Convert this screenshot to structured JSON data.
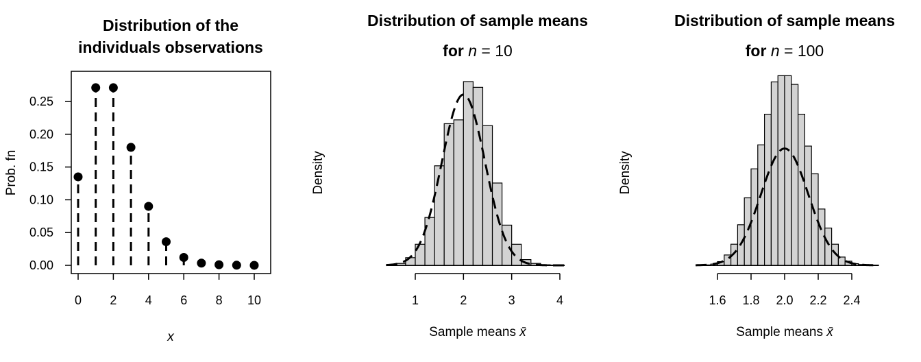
{
  "chart_data": [
    {
      "type": "bar",
      "title_lines": [
        "Distribution of the",
        "individuals observations"
      ],
      "xlabel": "x",
      "ylabel": "Prob. fn",
      "categories": [
        0,
        1,
        2,
        3,
        4,
        5,
        6,
        7,
        8,
        9,
        10
      ],
      "values": [
        0.135,
        0.271,
        0.271,
        0.18,
        0.09,
        0.036,
        0.012,
        0.0034,
        0.0009,
        0.0002,
        4e-05
      ],
      "xlim": [
        0,
        10
      ],
      "ylim": [
        0,
        0.29
      ],
      "xticks": [
        "0",
        "2",
        "4",
        "6",
        "8",
        "10"
      ],
      "yticks": [
        "0.00",
        "0.05",
        "0.10",
        "0.15",
        "0.20",
        "0.25"
      ],
      "style": "lollipop with dashed stems, boxed frame"
    },
    {
      "type": "bar",
      "title": "Distribution of sample means",
      "subtitle_parts": {
        "bold": "for",
        "italic": "n",
        "rest": " = 10"
      },
      "xlabel_text": "Sample means ",
      "xlabel_symbol": "x̄",
      "ylabel": "Density",
      "bin_edges": [
        0.4,
        0.6,
        0.8,
        1.0,
        1.2,
        1.4,
        1.6,
        1.8,
        2.0,
        2.2,
        2.4,
        2.6,
        2.8,
        3.0,
        3.2,
        3.4,
        3.6,
        3.8,
        4.0
      ],
      "values": [
        0.003,
        0.01,
        0.04,
        0.11,
        0.25,
        0.52,
        0.74,
        0.76,
        0.96,
        0.93,
        0.73,
        0.43,
        0.21,
        0.11,
        0.03,
        0.01,
        0.003,
        0.001
      ],
      "curve": {
        "type": "normal density",
        "mean": 2.0,
        "sd": 0.447,
        "style": "dashed"
      },
      "xticks": [
        "1",
        "2",
        "3",
        "4"
      ],
      "xlim": [
        0.4,
        4.1
      ],
      "ylim": [
        0,
        0.96
      ],
      "color_fill": "#d3d3d3"
    },
    {
      "type": "bar",
      "title": "Distribution of sample means",
      "subtitle_parts": {
        "bold": "for",
        "italic": "n",
        "rest": " = 100"
      },
      "xlabel_text": "Sample means ",
      "xlabel_symbol": "x̄",
      "ylabel": "Density",
      "bin_edges": [
        1.48,
        1.52,
        1.56,
        1.6,
        1.64,
        1.68,
        1.72,
        1.76,
        1.8,
        1.84,
        1.88,
        1.92,
        1.96,
        2.0,
        2.04,
        2.08,
        2.12,
        2.16,
        2.2,
        2.24,
        2.28,
        2.32,
        2.36,
        2.4,
        2.44,
        2.48,
        2.52,
        2.56
      ],
      "values": [
        0.005,
        0.01,
        0.03,
        0.09,
        0.25,
        0.51,
        0.98,
        1.63,
        2.33,
        2.91,
        3.65,
        4.43,
        4.58,
        4.58,
        4.37,
        3.65,
        2.88,
        2.21,
        1.36,
        0.9,
        0.51,
        0.2,
        0.1,
        0.04,
        0.02,
        0.01,
        0.005
      ],
      "curve": {
        "type": "normal density",
        "mean": 2.0,
        "sd": 0.1414,
        "style": "dashed"
      },
      "xticks": [
        "1.6",
        "1.8",
        "2.0",
        "2.2",
        "2.4"
      ],
      "xlim": [
        1.47,
        2.56
      ],
      "ylim": [
        0,
        4.62
      ],
      "color_fill": "#d3d3d3"
    }
  ]
}
